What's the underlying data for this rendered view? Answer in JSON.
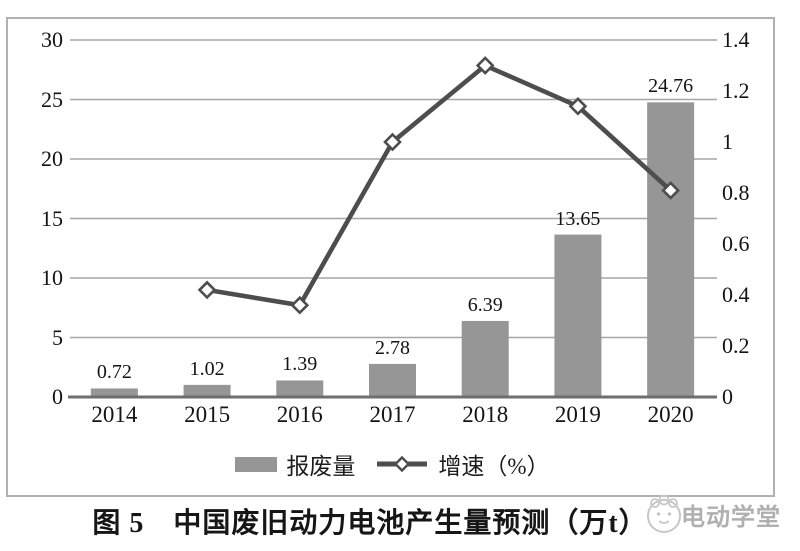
{
  "chart_data": {
    "type": "combo-bar-line",
    "title": "图 5　中国废旧动力电池产生量预测（万t）",
    "categories": [
      "2014",
      "2015",
      "2016",
      "2017",
      "2018",
      "2019",
      "2020"
    ],
    "series": [
      {
        "name": "报废量",
        "kind": "bar",
        "axis": "left",
        "values": [
          0.72,
          1.02,
          1.39,
          2.78,
          6.39,
          13.65,
          24.76
        ],
        "labels": [
          "0.72",
          "1.02",
          "1.39",
          "2.78",
          "6.39",
          "13.65",
          "24.76"
        ],
        "color": "#969696"
      },
      {
        "name": "增速（%）",
        "kind": "line",
        "axis": "right",
        "values": [
          null,
          0.42,
          0.36,
          1.0,
          1.3,
          1.14,
          0.81
        ],
        "color": "#4d4d4d",
        "marker": "diamond",
        "marker_fill": "#ffffff"
      }
    ],
    "left_axis": {
      "min": 0,
      "max": 30,
      "ticks": [
        0,
        5,
        10,
        15,
        20,
        25,
        30
      ],
      "tick_labels": [
        "0",
        "5",
        "10",
        "15",
        "20",
        "25",
        "30"
      ]
    },
    "right_axis": {
      "min": 0,
      "max": 1.4,
      "ticks": [
        0,
        0.2,
        0.4,
        0.6,
        0.8,
        1,
        1.2,
        1.4
      ],
      "tick_labels": [
        "0",
        "0.2",
        "0.4",
        "0.6",
        "0.8",
        "1",
        "1.2",
        "1.4"
      ]
    },
    "grid": true,
    "legend_position": "bottom",
    "colors": {
      "grid": "#a6a6a6",
      "axis_line": "#6e6e6e",
      "frame_border": "#b1b1b1"
    }
  },
  "watermark": "电动学堂"
}
